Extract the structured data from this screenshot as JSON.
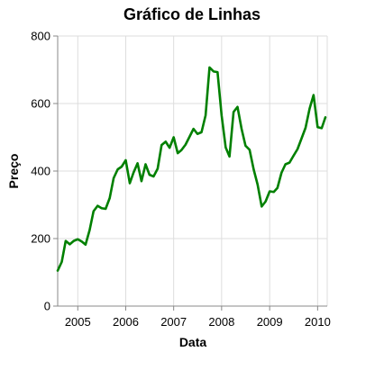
{
  "chart_data": {
    "type": "line",
    "title": "Gráfico de Linhas",
    "xlabel": "Data",
    "ylabel": "Preço",
    "grid": true,
    "legend": "none",
    "xlim": [
      "2004-08-01",
      "2010-03-15"
    ],
    "ylim": [
      0,
      800
    ],
    "xticks": [
      {
        "date": "2005-01-01",
        "label": "2005"
      },
      {
        "date": "2006-01-01",
        "label": "2006"
      },
      {
        "date": "2007-01-01",
        "label": "2007"
      },
      {
        "date": "2008-01-01",
        "label": "2008"
      },
      {
        "date": "2009-01-01",
        "label": "2009"
      },
      {
        "date": "2010-01-01",
        "label": "2010"
      }
    ],
    "yticks": [
      0,
      200,
      400,
      600,
      800
    ],
    "line_color": "#008000",
    "series": [
      {
        "x": [
          "2004-08-01",
          "2004-09-01",
          "2004-10-01",
          "2004-11-01",
          "2004-12-01",
          "2005-01-01",
          "2005-02-01",
          "2005-03-01",
          "2005-04-01",
          "2005-05-01",
          "2005-06-01",
          "2005-07-01",
          "2005-08-01",
          "2005-09-01",
          "2005-10-01",
          "2005-11-01",
          "2005-12-01",
          "2006-01-01",
          "2006-02-01",
          "2006-03-01",
          "2006-04-01",
          "2006-05-01",
          "2006-06-01",
          "2006-07-01",
          "2006-08-01",
          "2006-09-01",
          "2006-10-01",
          "2006-11-01",
          "2006-12-01",
          "2007-01-01",
          "2007-02-01",
          "2007-03-01",
          "2007-04-01",
          "2007-05-01",
          "2007-06-01",
          "2007-07-01",
          "2007-08-01",
          "2007-09-01",
          "2007-10-01",
          "2007-11-01",
          "2007-12-01",
          "2008-01-01",
          "2008-02-01",
          "2008-03-01",
          "2008-04-01",
          "2008-05-01",
          "2008-06-01",
          "2008-07-01",
          "2008-08-01",
          "2008-09-01",
          "2008-10-01",
          "2008-11-01",
          "2008-12-01",
          "2009-01-01",
          "2009-02-01",
          "2009-03-01",
          "2009-04-01",
          "2009-05-01",
          "2009-06-01",
          "2009-07-01",
          "2009-08-01",
          "2009-09-01",
          "2009-10-01",
          "2009-11-01",
          "2009-12-01",
          "2010-01-01",
          "2010-02-01",
          "2010-03-01"
        ],
        "values": [
          105,
          131,
          193,
          183,
          193,
          198,
          191,
          182,
          225,
          281,
          297,
          290,
          288,
          320,
          379,
          405,
          413,
          432,
          364,
          395,
          423,
          370,
          420,
          389,
          384,
          407,
          477,
          487,
          469,
          500,
          453,
          462,
          478,
          501,
          525,
          510,
          515,
          565,
          707,
          695,
          693,
          565,
          470,
          443,
          575,
          590,
          525,
          475,
          463,
          405,
          360,
          295,
          310,
          340,
          338,
          350,
          395,
          420,
          425,
          445,
          465,
          497,
          528,
          585,
          625,
          530,
          527,
          559
        ]
      }
    ]
  }
}
